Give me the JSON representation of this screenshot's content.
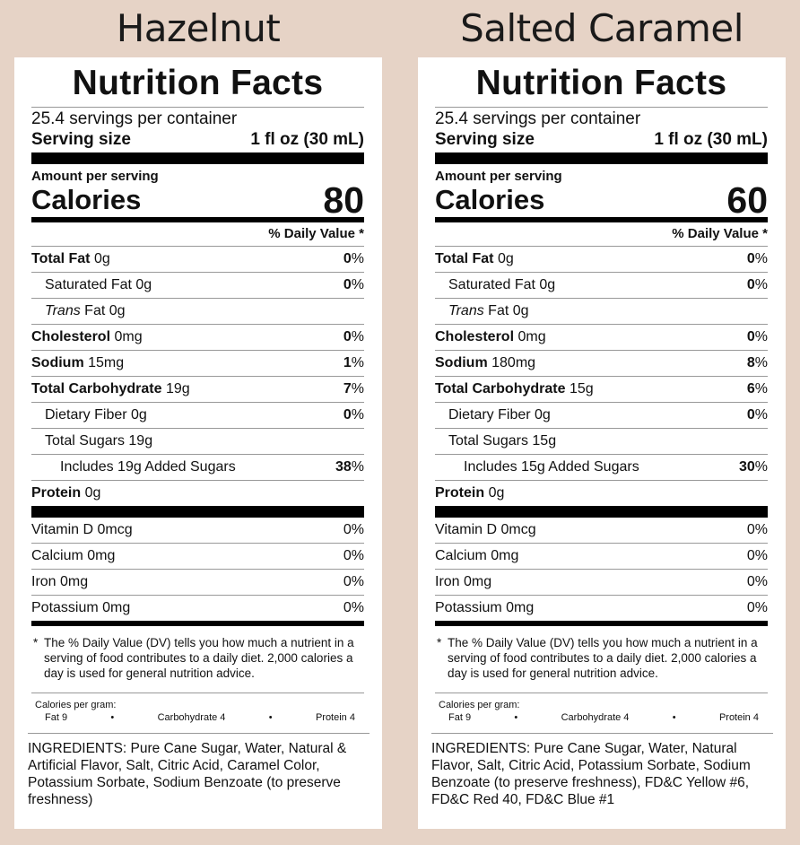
{
  "panels": [
    {
      "product": "Hazelnut",
      "title": "Nutrition Facts",
      "servings": "25.4 servings per container",
      "serving_size_label": "Serving size",
      "serving_size_value": "1 fl oz (30 mL)",
      "amount_label": "Amount per serving",
      "calories_label": "Calories",
      "calories_value": "80",
      "dv_header": "% Daily Value *",
      "nutrients": [
        {
          "name": "Total Fat",
          "amount": "0g",
          "dv": "0",
          "pct": "%"
        },
        {
          "name": "Saturated Fat",
          "amount": "0g",
          "dv": "0",
          "pct": "%"
        },
        {
          "name": "Trans",
          "suffix": "Fat",
          "amount": "0g",
          "dv": "",
          "pct": ""
        },
        {
          "name": "Cholesterol",
          "amount": "0mg",
          "dv": "0",
          "pct": "%"
        },
        {
          "name": "Sodium",
          "amount": "15mg",
          "dv": "1",
          "pct": "%"
        },
        {
          "name": "Total Carbohydrate",
          "amount": "19g",
          "dv": "7",
          "pct": "%"
        },
        {
          "name": "Dietary Fiber",
          "amount": "0g",
          "dv": "0",
          "pct": "%"
        },
        {
          "name": "Total Sugars",
          "amount": "19g",
          "dv": "",
          "pct": ""
        },
        {
          "name": "Includes 19g Added Sugars",
          "amount": "",
          "dv": "38",
          "pct": "%"
        },
        {
          "name": "Protein",
          "amount": "0g",
          "dv": "",
          "pct": ""
        }
      ],
      "vitamins": [
        {
          "name": "Vitamin D 0mcg",
          "dv": "0%"
        },
        {
          "name": "Calcium 0mg",
          "dv": "0%"
        },
        {
          "name": "Iron 0mg",
          "dv": "0%"
        },
        {
          "name": "Potassium 0mg",
          "dv": "0%"
        }
      ],
      "footnote_star": "*",
      "footnote": "The % Daily Value (DV) tells you how much a nutrient in a serving of food contributes to a daily diet. 2,000 calories a day is used for general nutrition advice.",
      "cal_per_gram": "Calories per gram:",
      "fat_per_gram": "Fat 9",
      "carb_per_gram": "Carbohydrate 4",
      "protein_per_gram": "Protein 4",
      "bullet": "•",
      "ingredients": "INGREDIENTS: Pure Cane Sugar, Water, Natural & Artificial Flavor, Salt, Citric Acid, Caramel Color, Potassium Sorbate, Sodium Benzoate (to preserve freshness)"
    },
    {
      "product": "Salted Caramel",
      "title": "Nutrition Facts",
      "servings": "25.4 servings per container",
      "serving_size_label": "Serving size",
      "serving_size_value": "1 fl oz (30 mL)",
      "amount_label": "Amount per serving",
      "calories_label": "Calories",
      "calories_value": "60",
      "dv_header": "% Daily Value *",
      "nutrients": [
        {
          "name": "Total Fat",
          "amount": "0g",
          "dv": "0",
          "pct": "%"
        },
        {
          "name": "Saturated Fat",
          "amount": "0g",
          "dv": "0",
          "pct": "%"
        },
        {
          "name": "Trans",
          "suffix": "Fat",
          "amount": "0g",
          "dv": "",
          "pct": ""
        },
        {
          "name": "Cholesterol",
          "amount": "0mg",
          "dv": "0",
          "pct": "%"
        },
        {
          "name": "Sodium",
          "amount": "180mg",
          "dv": "8",
          "pct": "%"
        },
        {
          "name": "Total Carbohydrate",
          "amount": "15g",
          "dv": "6",
          "pct": "%"
        },
        {
          "name": "Dietary Fiber",
          "amount": "0g",
          "dv": "0",
          "pct": "%"
        },
        {
          "name": "Total Sugars",
          "amount": "15g",
          "dv": "",
          "pct": ""
        },
        {
          "name": "Includes 15g Added Sugars",
          "amount": "",
          "dv": "30",
          "pct": "%"
        },
        {
          "name": "Protein",
          "amount": "0g",
          "dv": "",
          "pct": ""
        }
      ],
      "vitamins": [
        {
          "name": "Vitamin D 0mcg",
          "dv": "0%"
        },
        {
          "name": "Calcium 0mg",
          "dv": "0%"
        },
        {
          "name": "Iron 0mg",
          "dv": "0%"
        },
        {
          "name": "Potassium 0mg",
          "dv": "0%"
        }
      ],
      "footnote_star": "*",
      "footnote": "The % Daily Value (DV) tells you how much a nutrient in a serving of food contributes to a daily diet. 2,000 calories a day is used for general nutrition advice.",
      "cal_per_gram": "Calories per gram:",
      "fat_per_gram": "Fat 9",
      "carb_per_gram": "Carbohydrate 4",
      "protein_per_gram": "Protein 4",
      "bullet": "•",
      "ingredients": "INGREDIENTS: Pure Cane Sugar, Water, Natural Flavor, Salt, Citric Acid, Potassium Sorbate, Sodium Benzoate (to preserve freshness), FD&C Yellow #6, FD&C Red 40, FD&C Blue #1"
    }
  ]
}
